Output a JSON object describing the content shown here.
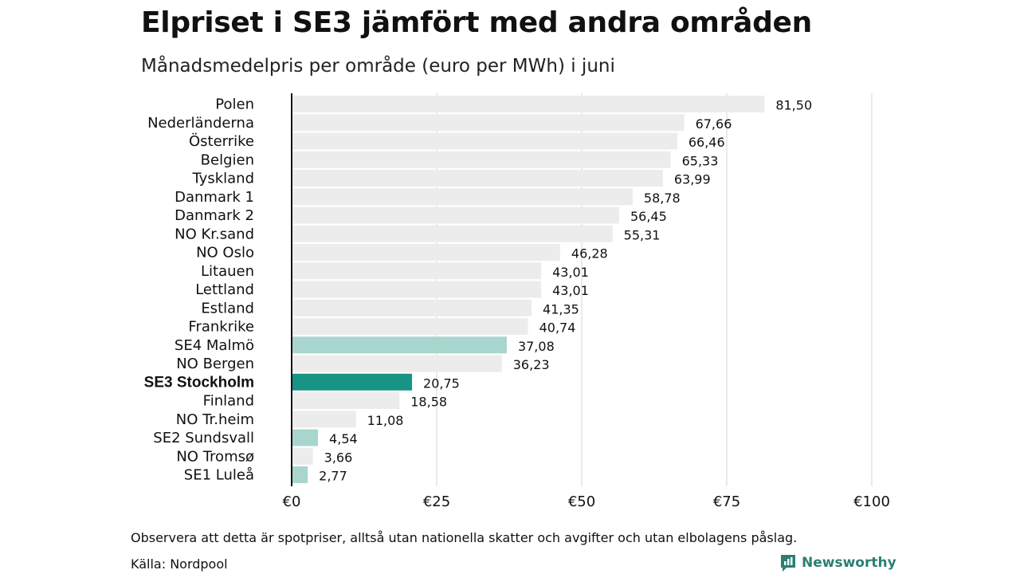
{
  "header": {
    "title": "Elpriset i SE3 jämfört med andra områden",
    "subtitle": "Månadsmedelpris per område (euro per MWh) i juni"
  },
  "footer": {
    "note": "Observera att detta är spotpriser, alltså utan nationella skatter och avgifter och utan elbolagens påslag.",
    "source": "Källa: Nordpool",
    "brand": "Newsworthy",
    "brand_icon": "newsworthy-logo-icon"
  },
  "chart_data": {
    "type": "bar",
    "orientation": "horizontal",
    "title": "Elpriset i SE3 jämfört med andra områden",
    "subtitle": "Månadsmedelpris per område (euro per MWh) i juni",
    "xlim": [
      0,
      100
    ],
    "x_ticks": [
      0,
      25,
      50,
      75,
      100
    ],
    "x_tick_labels": [
      "€0",
      "€25",
      "€50",
      "€75",
      "€100"
    ],
    "grid": "vertical",
    "colors": {
      "default": "#ececec",
      "swedish": "#a8d5cd",
      "highlight": "#179483",
      "axis": "#111111",
      "grid": "#d6d6d6"
    },
    "categories": [
      {
        "label": "Polen",
        "value": 81.5,
        "value_label": "81,50",
        "group": "default"
      },
      {
        "label": "Nederländerna",
        "value": 67.66,
        "value_label": "67,66",
        "group": "default"
      },
      {
        "label": "Österrike",
        "value": 66.46,
        "value_label": "66,46",
        "group": "default"
      },
      {
        "label": "Belgien",
        "value": 65.33,
        "value_label": "65,33",
        "group": "default"
      },
      {
        "label": "Tyskland",
        "value": 63.99,
        "value_label": "63,99",
        "group": "default"
      },
      {
        "label": "Danmark  1",
        "value": 58.78,
        "value_label": "58,78",
        "group": "default"
      },
      {
        "label": "Danmark  2",
        "value": 56.45,
        "value_label": "56,45",
        "group": "default"
      },
      {
        "label": "NO Kr.sand",
        "value": 55.31,
        "value_label": "55,31",
        "group": "default"
      },
      {
        "label": "NO Oslo",
        "value": 46.28,
        "value_label": "46,28",
        "group": "default"
      },
      {
        "label": "Litauen",
        "value": 43.01,
        "value_label": "43,01",
        "group": "default"
      },
      {
        "label": "Lettland",
        "value": 43.01,
        "value_label": "43,01",
        "group": "default"
      },
      {
        "label": "Estland",
        "value": 41.35,
        "value_label": "41,35",
        "group": "default"
      },
      {
        "label": "Frankrike",
        "value": 40.74,
        "value_label": "40,74",
        "group": "default"
      },
      {
        "label": "SE4  Malmö",
        "value": 37.08,
        "value_label": "37,08",
        "group": "swedish"
      },
      {
        "label": "NO Bergen",
        "value": 36.23,
        "value_label": "36,23",
        "group": "default"
      },
      {
        "label": "SE3 Stockholm",
        "value": 20.75,
        "value_label": "20,75",
        "group": "highlight"
      },
      {
        "label": "Finland",
        "value": 18.58,
        "value_label": "18,58",
        "group": "default"
      },
      {
        "label": "NO Tr.heim",
        "value": 11.08,
        "value_label": "11,08",
        "group": "default"
      },
      {
        "label": "SE2  Sundsvall",
        "value": 4.54,
        "value_label": "4,54",
        "group": "swedish"
      },
      {
        "label": "NO Tromsø",
        "value": 3.66,
        "value_label": "3,66",
        "group": "default"
      },
      {
        "label": "SE1  Luleå",
        "value": 2.77,
        "value_label": "2,77",
        "group": "swedish"
      }
    ]
  }
}
